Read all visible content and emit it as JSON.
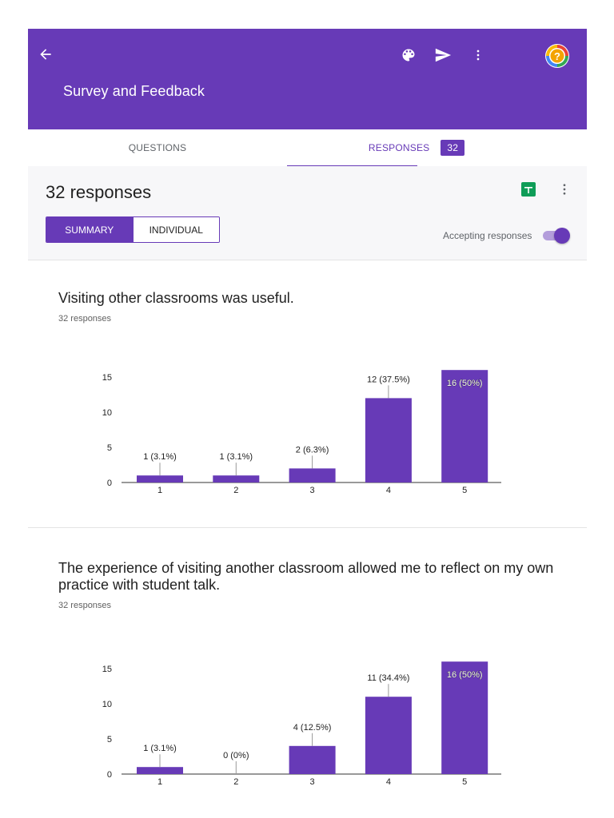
{
  "header": {
    "title": "Survey and Feedback",
    "background": "#673ab7",
    "icons": [
      "arrow-back-icon",
      "palette-icon",
      "send-icon",
      "more-vert-icon",
      "help-icon"
    ]
  },
  "tabs": {
    "questions_label": "QUESTIONS",
    "responses_label": "RESPONSES",
    "responses_count": "32"
  },
  "summary": {
    "count_text": "32 responses",
    "summary_label": "SUMMARY",
    "individual_label": "INDIVIDUAL",
    "accepting_label": "Accepting responses",
    "accepting_on": true,
    "accent": "#673ab7"
  },
  "questions": [
    {
      "title": "Visiting other classrooms was useful.",
      "responses": "32 responses"
    },
    {
      "title": "The experience of visiting another classroom allowed me to reflect on my own practice with student talk.",
      "responses": "32 responses"
    }
  ],
  "chart_data": [
    {
      "type": "bar",
      "categories": [
        "1",
        "2",
        "3",
        "4",
        "5"
      ],
      "values": [
        1,
        1,
        2,
        12,
        16
      ],
      "data_labels": [
        "1 (3.1%)",
        "1 (3.1%)",
        "2 (6.3%)",
        "12 (37.5%)",
        "16 (50%)"
      ],
      "yticks": [
        "0",
        "5",
        "10",
        "15"
      ],
      "ylim": [
        0,
        16
      ],
      "color": "#673ab7"
    },
    {
      "type": "bar",
      "categories": [
        "1",
        "2",
        "3",
        "4",
        "5"
      ],
      "values": [
        1,
        0,
        4,
        11,
        16
      ],
      "data_labels": [
        "1 (3.1%)",
        "0 (0%)",
        "4 (12.5%)",
        "11 (34.4%)",
        "16 (50%)"
      ],
      "yticks": [
        "0",
        "5",
        "10",
        "15"
      ],
      "ylim": [
        0,
        16
      ],
      "color": "#673ab7"
    }
  ]
}
